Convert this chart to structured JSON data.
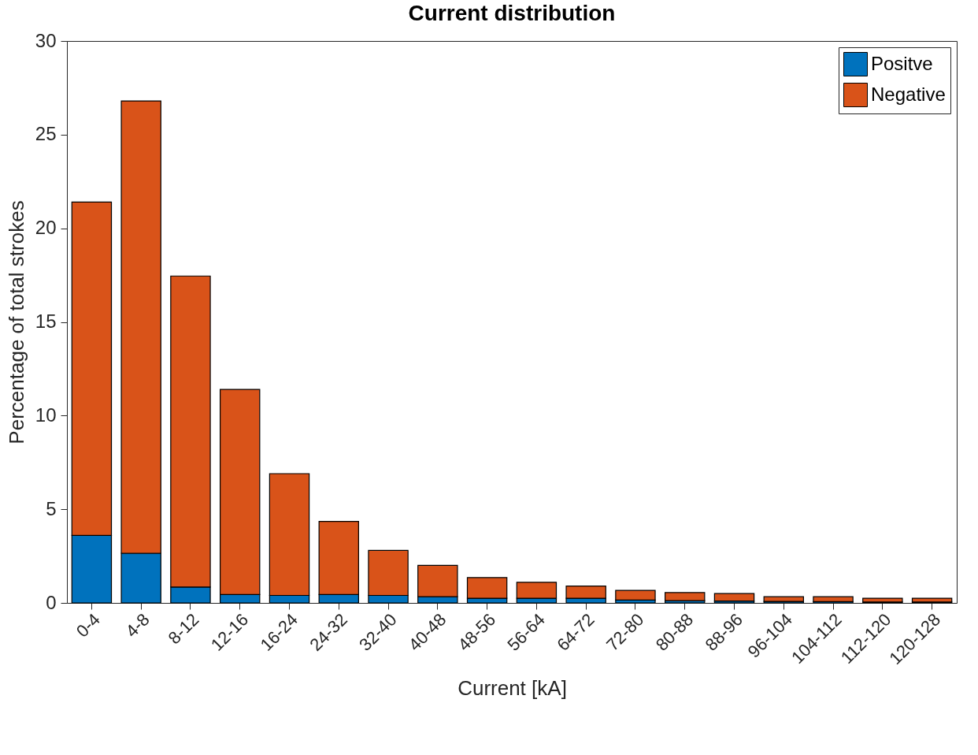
{
  "chart_data": {
    "type": "bar",
    "title": "Current distribution",
    "xlabel": "Current [kA]",
    "ylabel": "Percentage of total strokes",
    "categories": [
      "0-4",
      "4-8",
      "8-12",
      "12-16",
      "16-24",
      "24-32",
      "32-40",
      "40-48",
      "48-56",
      "56-64",
      "64-72",
      "72-80",
      "80-88",
      "88-96",
      "96-104",
      "104-112",
      "112-120",
      "120-128"
    ],
    "stacked": true,
    "ylim": [
      0,
      30
    ],
    "yticks": [
      0,
      5,
      10,
      15,
      20,
      25,
      30
    ],
    "grid": false,
    "legend": "top right",
    "series": [
      {
        "name": "Positve",
        "color": "#0072bd",
        "values": [
          3.6,
          2.65,
          0.85,
          0.45,
          0.4,
          0.45,
          0.4,
          0.33,
          0.25,
          0.25,
          0.25,
          0.15,
          0.12,
          0.1,
          0.08,
          0.07,
          0.05,
          0.05
        ]
      },
      {
        "name": "Negative",
        "color": "#d95319",
        "values": [
          17.8,
          24.15,
          16.6,
          10.95,
          6.5,
          3.9,
          2.4,
          1.67,
          1.1,
          0.85,
          0.65,
          0.52,
          0.43,
          0.4,
          0.25,
          0.26,
          0.2,
          0.2
        ]
      }
    ]
  }
}
